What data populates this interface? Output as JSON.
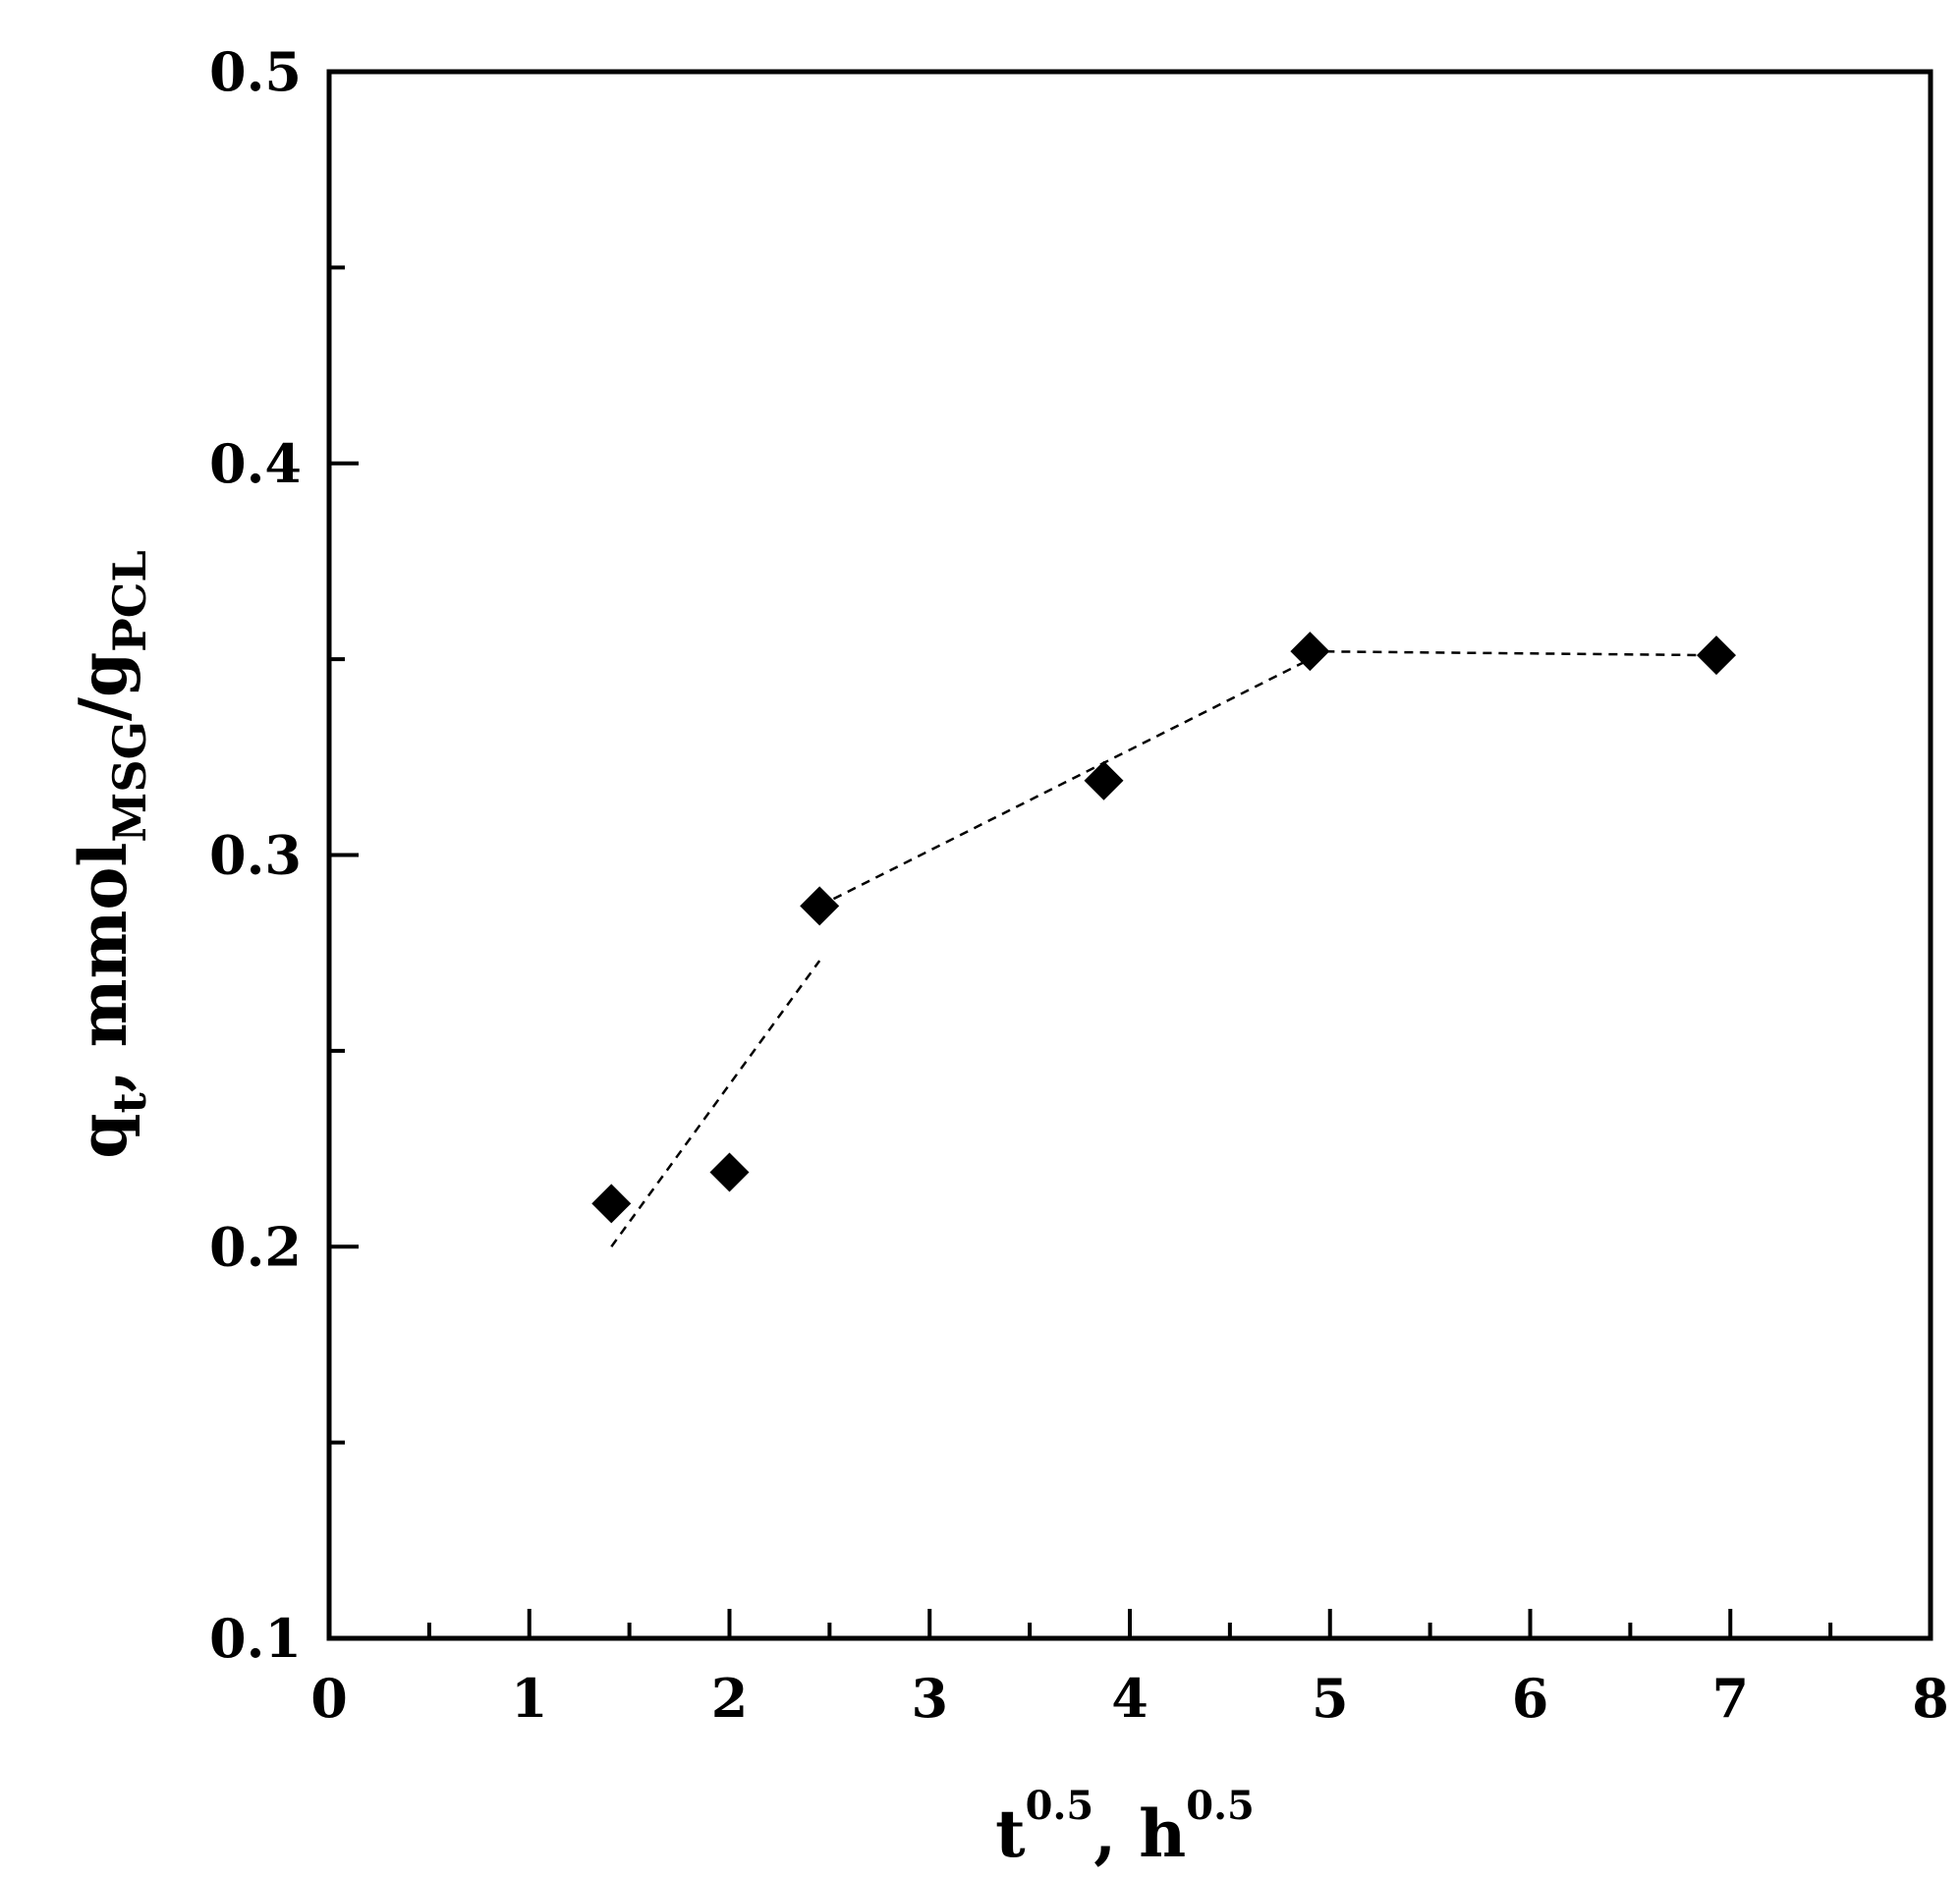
{
  "chart_data": {
    "type": "scatter",
    "title": "",
    "xlabel": {
      "base": "t",
      "exp": "0.5",
      "sep": ", ",
      "unit": "h",
      "unit_exp": "0.5"
    },
    "ylabel": {
      "base": "q",
      "base_sub": "t",
      "text": ", mmol",
      "sub1": "MSG",
      "slash": "/g",
      "sub2": "PCL"
    },
    "xlim": [
      0,
      8
    ],
    "ylim": [
      0.1,
      0.5
    ],
    "x_ticks": [
      "0",
      "1",
      "2",
      "3",
      "4",
      "5",
      "6",
      "7",
      "8"
    ],
    "y_ticks": [
      "0.1",
      "0.2",
      "0.3",
      "0.4",
      "0.5"
    ],
    "grid": false,
    "legend": "none",
    "series": [
      {
        "marker": "diamond",
        "color": "#000000",
        "points": [
          {
            "x": 1.41,
            "y": 0.211
          },
          {
            "x": 2.0,
            "y": 0.219
          },
          {
            "x": 2.45,
            "y": 0.287
          },
          {
            "x": 3.87,
            "y": 0.319
          },
          {
            "x": 4.9,
            "y": 0.352
          },
          {
            "x": 6.93,
            "y": 0.351
          }
        ]
      }
    ],
    "fit_lines": [
      {
        "style": "dashed",
        "color": "#000000",
        "points": [
          {
            "x": 1.41,
            "y": 0.2
          },
          {
            "x": 2.45,
            "y": 0.273
          }
        ]
      },
      {
        "style": "dashed",
        "color": "#000000",
        "points": [
          {
            "x": 2.45,
            "y": 0.287
          },
          {
            "x": 4.9,
            "y": 0.35
          }
        ]
      },
      {
        "style": "dashed",
        "color": "#000000",
        "points": [
          {
            "x": 4.9,
            "y": 0.352
          },
          {
            "x": 6.93,
            "y": 0.351
          }
        ]
      }
    ]
  }
}
